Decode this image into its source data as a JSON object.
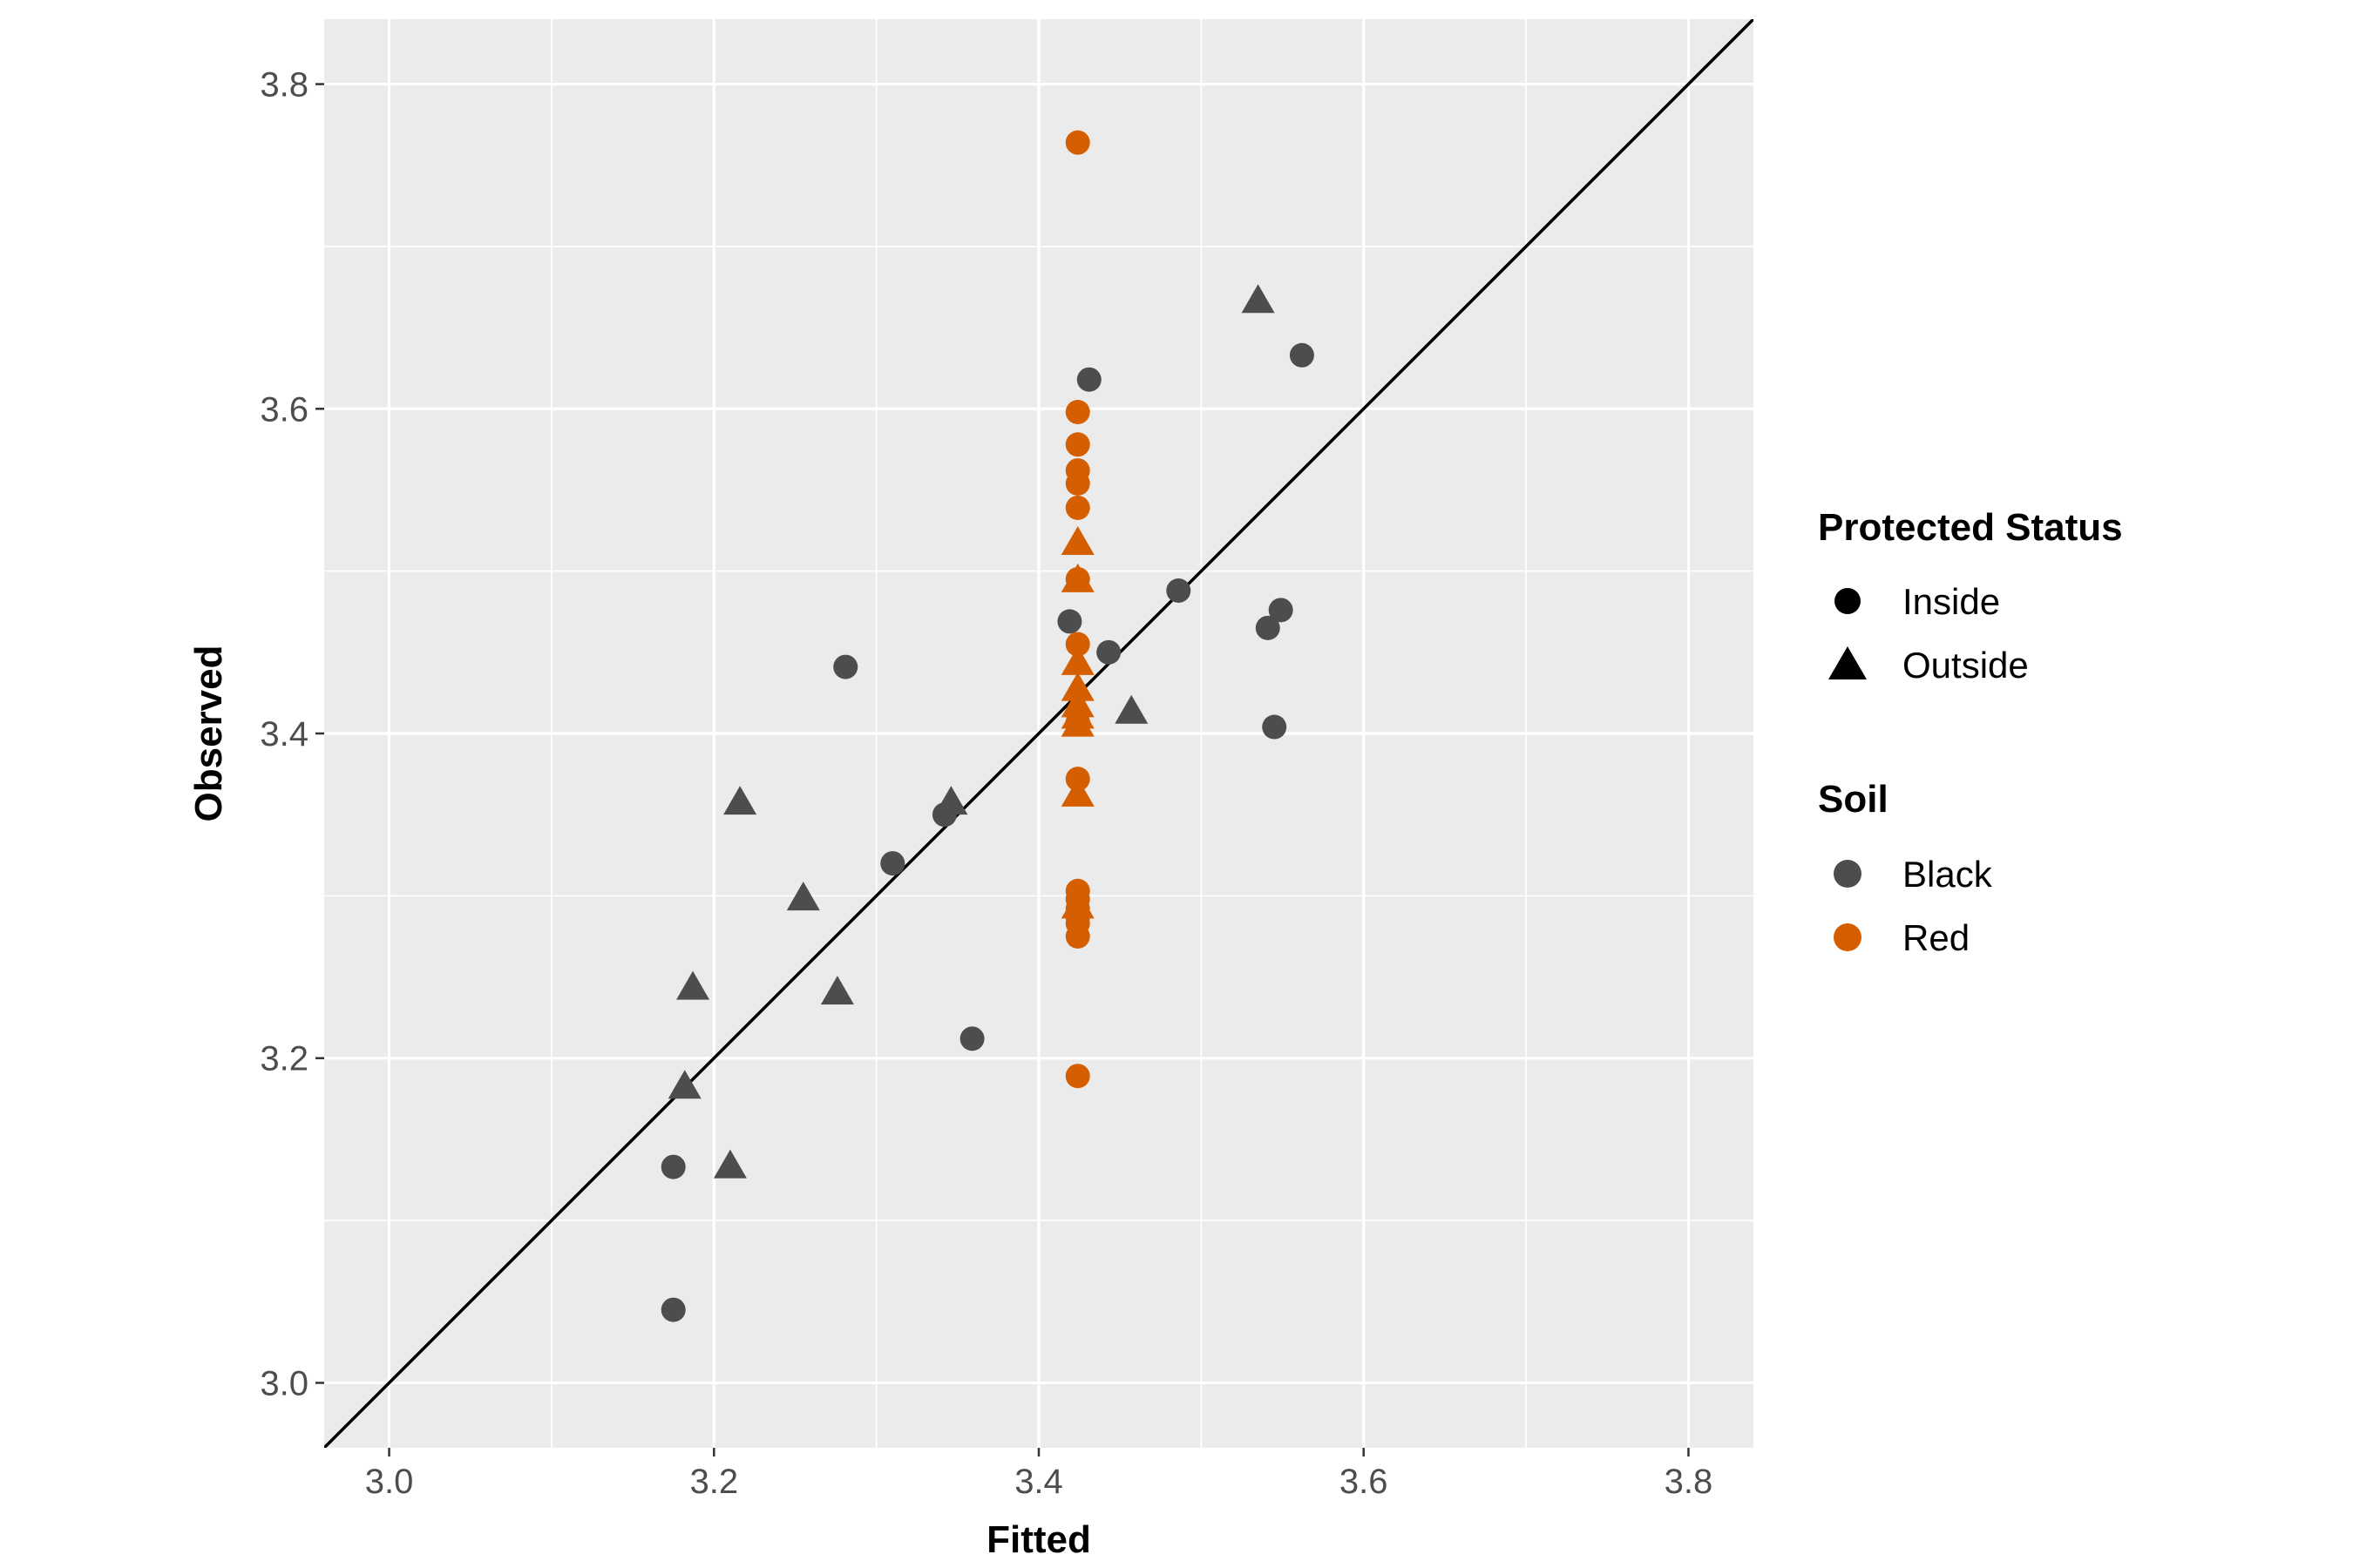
{
  "chart_data": {
    "type": "scatter",
    "xlabel": "Fitted",
    "ylabel": "Observed",
    "xlim": [
      2.96,
      3.84
    ],
    "ylim": [
      2.96,
      3.84
    ],
    "x_ticks": [
      "3.0",
      "3.2",
      "3.4",
      "3.6",
      "3.8"
    ],
    "y_ticks": [
      "3.0",
      "3.2",
      "3.4",
      "3.6",
      "3.8"
    ],
    "grid": true,
    "reference_line": {
      "slope": 1,
      "intercept": 0,
      "color": "#000000"
    },
    "legend_position": "right",
    "legends": [
      {
        "title": "Protected Status",
        "entries": [
          {
            "label": "Inside",
            "shape": "circle"
          },
          {
            "label": "Outside",
            "shape": "triangle"
          }
        ]
      },
      {
        "title": "Soil",
        "entries": [
          {
            "label": "Black",
            "color": "#4d4d4d"
          },
          {
            "label": "Red",
            "color": "#d55e00"
          }
        ]
      }
    ],
    "colors": {
      "Black": "#4d4d4d",
      "Red": "#d55e00"
    },
    "series": [
      {
        "soil": "Black",
        "status": "Inside",
        "x": [
          3.175,
          3.175,
          3.281,
          3.31,
          3.342,
          3.359,
          3.419,
          3.431,
          3.443,
          3.486,
          3.541,
          3.545,
          3.549,
          3.562
        ],
        "y": [
          3.045,
          3.133,
          3.441,
          3.32,
          3.35,
          3.212,
          3.469,
          3.618,
          3.45,
          3.488,
          3.465,
          3.404,
          3.476,
          3.633
        ]
      },
      {
        "soil": "Black",
        "status": "Outside",
        "x": [
          3.182,
          3.187,
          3.21,
          3.216,
          3.255,
          3.276,
          3.346,
          3.457,
          3.535
        ],
        "y": [
          3.182,
          3.243,
          3.133,
          3.357,
          3.298,
          3.24,
          3.357,
          3.413,
          3.666
        ]
      },
      {
        "soil": "Red",
        "status": "Inside",
        "x": [
          3.424,
          3.424,
          3.424,
          3.424,
          3.424,
          3.424,
          3.424,
          3.424,
          3.424,
          3.424,
          3.424,
          3.424,
          3.424,
          3.424,
          3.424,
          3.424,
          3.424
        ],
        "y": [
          3.764,
          3.598,
          3.578,
          3.562,
          3.554,
          3.539,
          3.495,
          3.455,
          3.407,
          3.372,
          3.303,
          3.298,
          3.292,
          3.287,
          3.283,
          3.275,
          3.189
        ]
      },
      {
        "soil": "Red",
        "status": "Outside",
        "x": [
          3.424,
          3.424,
          3.424,
          3.424,
          3.424,
          3.424,
          3.424,
          3.424,
          3.424
        ],
        "y": [
          3.517,
          3.494,
          3.443,
          3.427,
          3.417,
          3.41,
          3.405,
          3.362,
          3.293
        ]
      }
    ]
  }
}
